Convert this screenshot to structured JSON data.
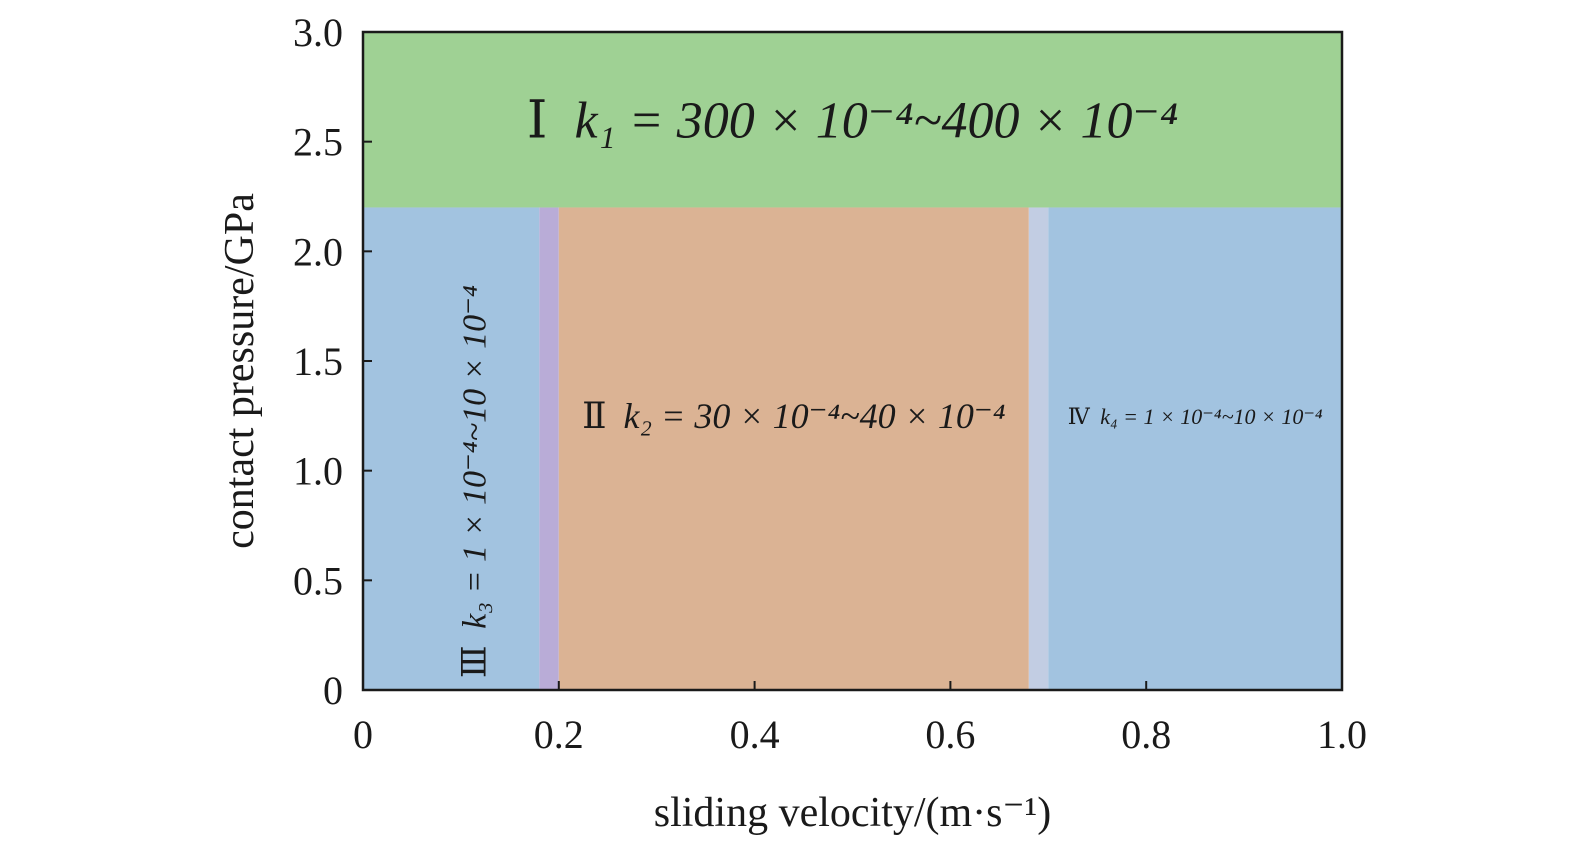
{
  "chart_data": {
    "type": "heatmap",
    "xlabel": "sliding velocity/(m·s⁻¹)",
    "ylabel": "contact pressure/GPa",
    "xlim": [
      0,
      1.0
    ],
    "ylim": [
      0,
      3.0
    ],
    "x_ticks": [
      "0",
      "0.2",
      "0.4",
      "0.6",
      "0.8",
      "1.0"
    ],
    "y_ticks": [
      "0",
      "0.5",
      "1.0",
      "1.5",
      "2.0",
      "2.5",
      "3.0"
    ],
    "grid": false,
    "legend": "none",
    "regions": [
      {
        "id": "I",
        "numeral": "Ⅰ",
        "label": "k₁ = 300 × 10⁻⁴~400 × 10⁻⁴",
        "x_range": [
          0,
          1.0
        ],
        "y_range": [
          2.2,
          3.0
        ],
        "color": "#9fd194"
      },
      {
        "id": "II",
        "numeral": "Ⅱ",
        "label": "k₂ = 30 × 10⁻⁴~40 × 10⁻⁴",
        "x_range": [
          0.2,
          0.68
        ],
        "y_range": [
          0,
          2.2
        ],
        "color": "#dbb394"
      },
      {
        "id": "III",
        "numeral": "Ⅲ",
        "label": "k₃ = 1 × 10⁻⁴~10 × 10⁻⁴",
        "x_range": [
          0,
          0.18
        ],
        "y_range": [
          0,
          2.2
        ],
        "color": "#a2c3e0"
      },
      {
        "id": "IV",
        "numeral": "Ⅳ",
        "label": "k₄ = 1 × 10⁻⁴~10 × 10⁻⁴",
        "x_range": [
          0.7,
          1.0
        ],
        "y_range": [
          0,
          2.2
        ],
        "color": "#a2c3e0"
      }
    ],
    "transitions": [
      {
        "x_range": [
          0.18,
          0.2
        ],
        "y_range": [
          0,
          2.2
        ],
        "color": "#b9acd7"
      },
      {
        "x_range": [
          0.68,
          0.7
        ],
        "y_range": [
          0,
          2.2
        ],
        "color": "#c2cde3"
      }
    ]
  }
}
